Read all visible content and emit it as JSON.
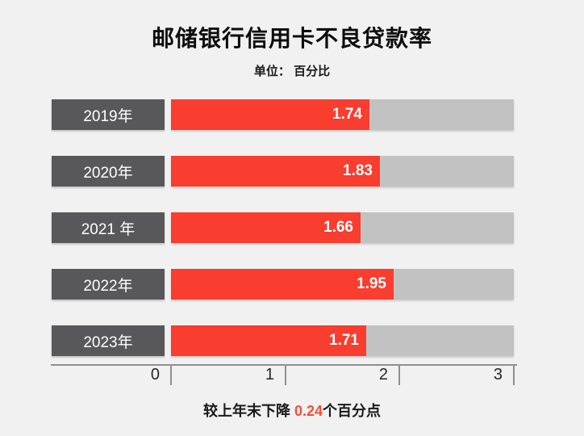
{
  "title": "邮储银行信用卡不良贷款率",
  "unit_label": "单位： 百分比",
  "footer": {
    "prefix": "较上年末下降 ",
    "highlight": "0.24",
    "suffix": "个百分点"
  },
  "colors": {
    "background": "#f1f1f2",
    "bar_red": "#f93d2e",
    "bar_track_gray": "#c2c2c3",
    "year_box_dark": "#58585a",
    "axis_gray": "#8f8f90",
    "highlight_red": "#f94d35"
  },
  "chart_data": {
    "type": "bar",
    "orientation": "horizontal",
    "title": "邮储银行信用卡不良贷款率",
    "unit_label": "单位： 百分比",
    "categories": [
      "2019年",
      "2020年",
      "2021 年",
      "2022年",
      "2023年"
    ],
    "values": [
      1.74,
      1.83,
      1.66,
      1.95,
      1.71
    ],
    "value_labels": [
      "1.74",
      "1.83",
      "1.66",
      "1.95",
      "1.71"
    ],
    "xlim": [
      0,
      3
    ],
    "x_ticks": [
      0,
      1,
      2,
      3
    ],
    "x_tick_labels": [
      "0",
      "1",
      "2",
      "3"
    ],
    "grid": false,
    "legend": false,
    "annotation": "较上年末下降 0.24个百分点"
  }
}
